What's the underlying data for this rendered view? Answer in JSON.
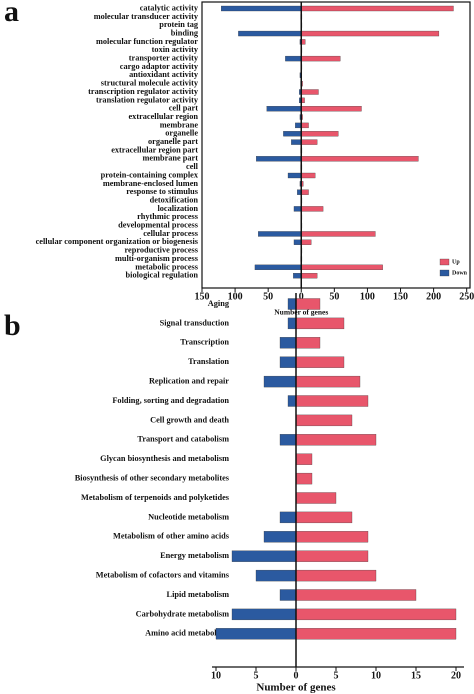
{
  "chart_data": [
    {
      "type": "bar",
      "orientation": "horizontal",
      "panel": "a",
      "xlabel": "Number of genes",
      "categories": [
        "catalytic activity",
        "molecular transducer activity",
        "protein tag",
        "binding",
        "molecular function regulator",
        "toxin activity",
        "transporter activity",
        "cargo adaptor activity",
        "antioxidant activity",
        "structural molecule activity",
        "transcription regulator activity",
        "translation regulator activity",
        "cell part",
        "extracellular region",
        "membrane",
        "organelle",
        "organelle part",
        "extracellular region part",
        "membrane part",
        "cell",
        "protein-containing complex",
        "membrane-enclosed lumen",
        "response to stimulus",
        "detoxification",
        "localization",
        "rhythmic process",
        "developmental process",
        "cellular process",
        "cellular component organization or biogenesis",
        "reproductive process",
        "multi-organism process",
        "metabolic process",
        "biological regulation"
      ],
      "series": [
        {
          "name": "Up",
          "color": "#e8566b",
          "values": [
            230,
            1,
            1,
            208,
            6,
            1,
            59,
            1,
            0,
            2,
            26,
            5,
            91,
            2,
            11,
            56,
            24,
            1,
            177,
            1,
            21,
            3,
            11,
            1,
            33,
            1,
            1,
            112,
            15,
            1,
            1,
            123,
            24
          ]
        },
        {
          "name": "Down",
          "color": "#2b5aa0",
          "values": [
            -121,
            -1,
            0,
            -95,
            -2,
            0,
            -24,
            0,
            -2,
            -1,
            -3,
            -3,
            -52,
            -2,
            -9,
            -27,
            -15,
            -1,
            -68,
            -1,
            -20,
            -2,
            -6,
            0,
            -11,
            0,
            0,
            -65,
            -11,
            0,
            -1,
            -70,
            -12
          ]
        }
      ],
      "xlim": [
        -150,
        255
      ],
      "xticks": [
        {
          "value": -150,
          "label": "150"
        },
        {
          "value": -100,
          "label": "100"
        },
        {
          "value": -50,
          "label": "50"
        },
        0,
        50,
        100,
        150,
        200,
        250
      ],
      "legend": "lower right",
      "frame": true
    },
    {
      "type": "bar",
      "orientation": "horizontal",
      "panel": "b",
      "xlabel": "Number of genes",
      "categories": [
        "Aging",
        "Signal transduction",
        "Transcription",
        "Translation",
        "Replication and repair",
        "Folding, sorting and degradation",
        "Cell growth and death",
        "Transport and catabolism",
        "Glycan biosynthesis and metabolism",
        "Biosynthesis of other secondary metabolites",
        "Metabolism of terpenoids and polyketides",
        "Nucleotide metabolism",
        "Metabolism of other amino acids",
        "Energy metabolism",
        "Metabolism of cofactors and vitamins",
        "Lipid metabolism",
        "Carbohydrate metabolism",
        "Amino acid metabolism"
      ],
      "series": [
        {
          "name": "Up",
          "color": "#e8566b",
          "values": [
            3,
            6,
            3,
            6,
            8,
            9,
            7,
            10,
            2,
            2,
            5,
            7,
            9,
            9,
            10,
            15,
            20,
            20
          ]
        },
        {
          "name": "Down",
          "color": "#2b5aa0",
          "values": [
            -1,
            -1,
            -2,
            -2,
            -4,
            -1,
            0,
            -2,
            0,
            0,
            0,
            -2,
            -4,
            -8,
            -5,
            -2,
            -8,
            -10
          ]
        }
      ],
      "xlim": [
        -10.5,
        21
      ],
      "xticks": [
        {
          "value": -10,
          "label": "10"
        },
        {
          "value": -5,
          "label": "5"
        },
        0,
        5,
        10,
        15,
        20
      ],
      "frame": false
    }
  ]
}
